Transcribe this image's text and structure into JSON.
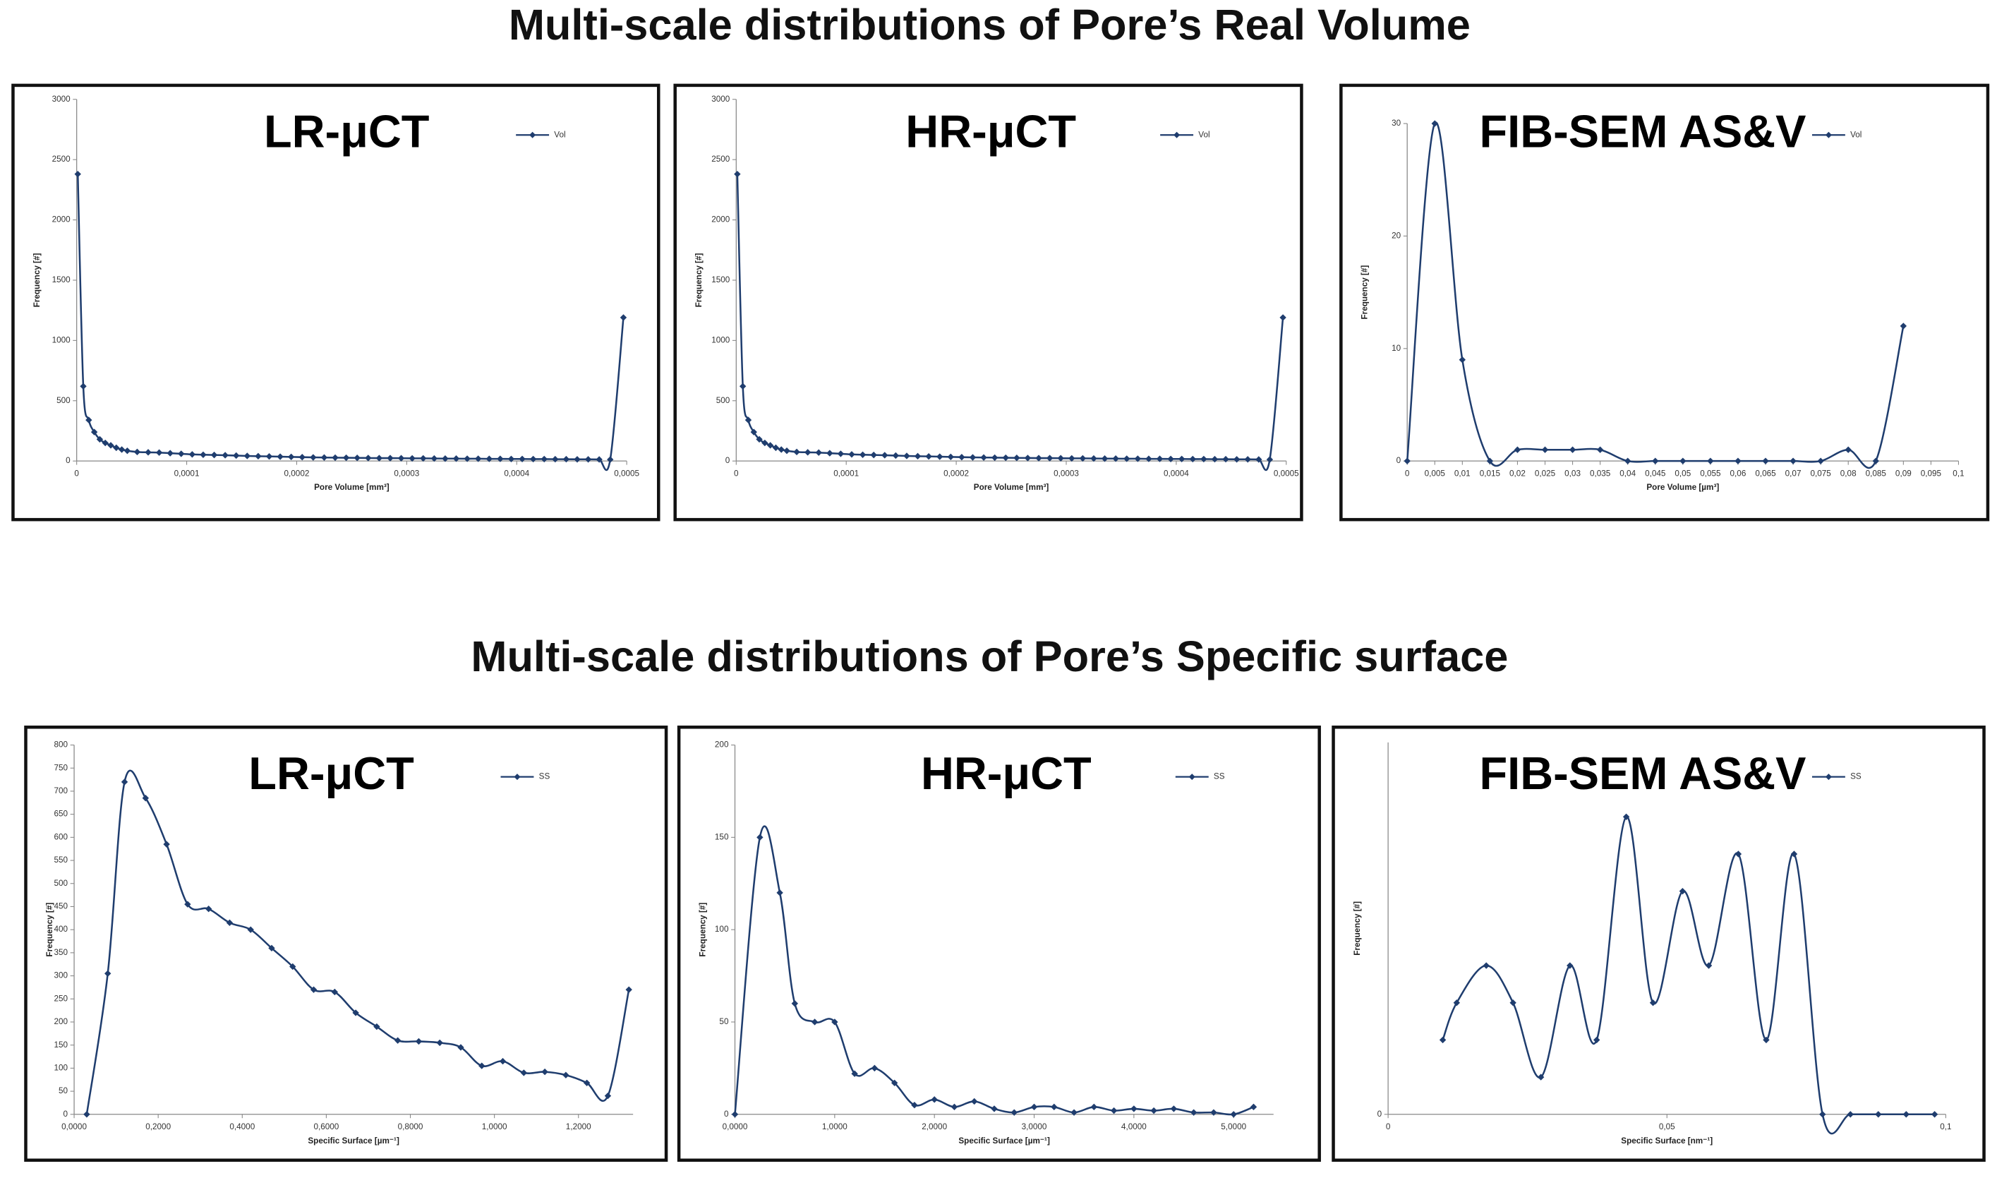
{
  "section_titles": [
    "Multi-scale distributions of Pore’s Real Volume",
    "Multi-scale distributions of Pore’s Specific surface"
  ],
  "chart_data": [
    {
      "type": "line",
      "title": "LR-μCT",
      "xlabel": "Pore Volume [mm³]",
      "ylabel": "Frequency [#]",
      "smooth": true,
      "xlim": [
        0,
        0.0005
      ],
      "xticks": [
        0,
        {
          "value": 0.0001,
          "label": "0,0001"
        },
        {
          "value": 0.0002,
          "label": "0,0002"
        },
        {
          "value": 0.0003,
          "label": "0,0003"
        },
        {
          "value": 0.0004,
          "label": "0,0004"
        },
        {
          "value": 0.0005,
          "label": "0,0005"
        }
      ],
      "ylim": [
        0,
        3000
      ],
      "yticks": [
        0,
        500,
        1000,
        1500,
        2000,
        2500,
        3000
      ],
      "x": [
        1e-06,
        6e-06,
        1.1e-05,
        1.6e-05,
        2.1e-05,
        2.6e-05,
        3.1e-05,
        3.6e-05,
        4.1e-05,
        4.6e-05,
        5.5e-05,
        6.5e-05,
        7.5e-05,
        8.5e-05,
        9.5e-05,
        0.000105,
        0.000115,
        0.000125,
        0.000135,
        0.000145,
        0.000155,
        0.000165,
        0.000175,
        0.000185,
        0.000195,
        0.000205,
        0.000215,
        0.000225,
        0.000235,
        0.000245,
        0.000255,
        0.000265,
        0.000275,
        0.000285,
        0.000295,
        0.000305,
        0.000315,
        0.000325,
        0.000335,
        0.000345,
        0.000355,
        0.000365,
        0.000375,
        0.000385,
        0.000395,
        0.000405,
        0.000415,
        0.000425,
        0.000435,
        0.000445,
        0.000455,
        0.000465,
        0.000475,
        0.000485,
        0.000497
      ],
      "series": [
        {
          "name": "Vol",
          "color": "#1f3d6e",
          "values": [
            2380,
            620,
            340,
            240,
            180,
            150,
            130,
            110,
            95,
            85,
            75,
            72,
            70,
            65,
            60,
            55,
            52,
            50,
            48,
            45,
            42,
            40,
            38,
            36,
            34,
            32,
            30,
            29,
            28,
            27,
            26,
            25,
            24,
            24,
            23,
            22,
            22,
            21,
            20,
            20,
            19,
            19,
            18,
            18,
            17,
            17,
            16,
            16,
            15,
            15,
            14,
            14,
            13,
            12,
            1190
          ]
        }
      ]
    },
    {
      "type": "line",
      "title": "HR-μCT",
      "xlabel": "Pore Volume [mm³]",
      "ylabel": "Frequency [#]",
      "smooth": true,
      "xlim": [
        0,
        0.0005
      ],
      "xticks": [
        0,
        {
          "value": 0.0001,
          "label": "0,0001"
        },
        {
          "value": 0.0002,
          "label": "0,0002"
        },
        {
          "value": 0.0003,
          "label": "0,0003"
        },
        {
          "value": 0.0004,
          "label": "0,0004"
        },
        {
          "value": 0.0005,
          "label": "0,0005"
        }
      ],
      "ylim": [
        0,
        3000
      ],
      "yticks": [
        0,
        500,
        1000,
        1500,
        2000,
        2500,
        3000
      ],
      "x": [
        1e-06,
        6e-06,
        1.1e-05,
        1.6e-05,
        2.1e-05,
        2.6e-05,
        3.1e-05,
        3.6e-05,
        4.1e-05,
        4.6e-05,
        5.5e-05,
        6.5e-05,
        7.5e-05,
        8.5e-05,
        9.5e-05,
        0.000105,
        0.000115,
        0.000125,
        0.000135,
        0.000145,
        0.000155,
        0.000165,
        0.000175,
        0.000185,
        0.000195,
        0.000205,
        0.000215,
        0.000225,
        0.000235,
        0.000245,
        0.000255,
        0.000265,
        0.000275,
        0.000285,
        0.000295,
        0.000305,
        0.000315,
        0.000325,
        0.000335,
        0.000345,
        0.000355,
        0.000365,
        0.000375,
        0.000385,
        0.000395,
        0.000405,
        0.000415,
        0.000425,
        0.000435,
        0.000445,
        0.000455,
        0.000465,
        0.000475,
        0.000485,
        0.000497
      ],
      "series": [
        {
          "name": "Vol",
          "color": "#1f3d6e",
          "values": [
            2380,
            620,
            340,
            240,
            180,
            150,
            130,
            110,
            95,
            85,
            75,
            72,
            70,
            65,
            60,
            55,
            52,
            50,
            48,
            45,
            42,
            40,
            38,
            36,
            34,
            32,
            30,
            29,
            28,
            27,
            26,
            25,
            24,
            24,
            23,
            22,
            22,
            21,
            20,
            20,
            19,
            19,
            18,
            18,
            17,
            17,
            16,
            16,
            15,
            15,
            14,
            14,
            13,
            12,
            1190
          ]
        }
      ]
    },
    {
      "type": "line",
      "title": "FIB-SEM AS&V",
      "xlabel": "Pore Volume [µm³]",
      "ylabel": "Frequency [#]",
      "smooth": true,
      "xlim": [
        0,
        0.1
      ],
      "xticks": [
        0,
        {
          "value": 0.005,
          "label": "0,005"
        },
        {
          "value": 0.01,
          "label": "0,01"
        },
        {
          "value": 0.015,
          "label": "0,015"
        },
        {
          "value": 0.02,
          "label": "0,02"
        },
        {
          "value": 0.025,
          "label": "0,025"
        },
        {
          "value": 0.03,
          "label": "0,03"
        },
        {
          "value": 0.035,
          "label": "0,035"
        },
        {
          "value": 0.04,
          "label": "0,04"
        },
        {
          "value": 0.045,
          "label": "0,045"
        },
        {
          "value": 0.05,
          "label": "0,05"
        },
        {
          "value": 0.055,
          "label": "0,055"
        },
        {
          "value": 0.06,
          "label": "0,06"
        },
        {
          "value": 0.065,
          "label": "0,065"
        },
        {
          "value": 0.07,
          "label": "0,07"
        },
        {
          "value": 0.075,
          "label": "0,075"
        },
        {
          "value": 0.08,
          "label": "0,08"
        },
        {
          "value": 0.085,
          "label": "0,085"
        },
        {
          "value": 0.09,
          "label": "0,09"
        },
        {
          "value": 0.095,
          "label": "0,095"
        },
        {
          "value": 0.1,
          "label": "0,1"
        }
      ],
      "ylim": [
        0,
        30
      ],
      "yticks": [
        0,
        10,
        20,
        30
      ],
      "x": [
        0,
        0.005,
        0.01,
        0.015,
        0.02,
        0.025,
        0.03,
        0.035,
        0.04,
        0.045,
        0.05,
        0.055,
        0.06,
        0.065,
        0.07,
        0.075,
        0.08,
        0.085,
        0.09
      ],
      "series": [
        {
          "name": "Vol",
          "color": "#1f3d6e",
          "values": [
            0,
            30,
            9,
            0,
            1,
            1,
            1,
            1,
            0,
            0,
            0,
            0,
            0,
            0,
            0,
            0,
            1,
            0,
            12
          ]
        }
      ]
    },
    {
      "type": "line",
      "title": "LR-μCT",
      "xlabel": "Specific Surface [µm⁻¹]",
      "ylabel": "Frequency [#]",
      "smooth": true,
      "xlim": [
        0,
        1.33
      ],
      "xticks": [
        {
          "value": 0,
          "label": "0,0000"
        },
        {
          "value": 0.2,
          "label": "0,2000"
        },
        {
          "value": 0.4,
          "label": "0,4000"
        },
        {
          "value": 0.6,
          "label": "0,6000"
        },
        {
          "value": 0.8,
          "label": "0,8000"
        },
        {
          "value": 1,
          "label": "1,0000"
        },
        {
          "value": 1.2,
          "label": "1,2000"
        }
      ],
      "ylim": [
        0,
        800
      ],
      "yticks": [
        0,
        50,
        100,
        150,
        200,
        250,
        300,
        350,
        400,
        450,
        500,
        550,
        600,
        650,
        700,
        750,
        800
      ],
      "x": [
        0.03,
        0.08,
        0.12,
        0.17,
        0.22,
        0.27,
        0.32,
        0.37,
        0.42,
        0.47,
        0.52,
        0.57,
        0.62,
        0.67,
        0.72,
        0.77,
        0.82,
        0.87,
        0.92,
        0.97,
        1.02,
        1.07,
        1.12,
        1.17,
        1.22,
        1.27,
        1.32
      ],
      "series": [
        {
          "name": "SS",
          "color": "#1f3d6e",
          "values": [
            0,
            305,
            720,
            685,
            585,
            455,
            445,
            415,
            400,
            360,
            320,
            270,
            265,
            220,
            190,
            160,
            158,
            155,
            145,
            105,
            115,
            90,
            92,
            85,
            68,
            40,
            270
          ]
        }
      ]
    },
    {
      "type": "line",
      "title": "HR-μCT",
      "xlabel": "Specific Surface [µm⁻¹]",
      "ylabel": "Frequency [#]",
      "smooth": true,
      "xlim": [
        0,
        5.4
      ],
      "xticks": [
        {
          "value": 0,
          "label": "0,0000"
        },
        {
          "value": 1,
          "label": "1,0000"
        },
        {
          "value": 2,
          "label": "2,0000"
        },
        {
          "value": 3,
          "label": "3,0000"
        },
        {
          "value": 4,
          "label": "4,0000"
        },
        {
          "value": 5,
          "label": "5,0000"
        }
      ],
      "ylim": [
        0,
        200
      ],
      "yticks": [
        0,
        50,
        100,
        150,
        200
      ],
      "x": [
        0,
        0.25,
        0.45,
        0.6,
        0.8,
        1,
        1.2,
        1.4,
        1.6,
        1.8,
        2,
        2.2,
        2.4,
        2.6,
        2.8,
        3,
        3.2,
        3.4,
        3.6,
        3.8,
        4,
        4.2,
        4.4,
        4.6,
        4.8,
        5,
        5.2
      ],
      "series": [
        {
          "name": "SS",
          "color": "#1f3d6e",
          "values": [
            0,
            150,
            120,
            60,
            50,
            50,
            22,
            25,
            17,
            5,
            8,
            4,
            7,
            3,
            1,
            4,
            4,
            1,
            4,
            2,
            3,
            2,
            3,
            1,
            1,
            0,
            4
          ]
        }
      ]
    },
    {
      "type": "line",
      "title": "FIB-SEM AS&V",
      "xlabel": "Specific Surface [nm⁻¹]",
      "ylabel": "Frequency [#]",
      "smooth": true,
      "xlim": [
        0,
        0.1
      ],
      "xticks": [
        0,
        {
          "value": 0.05,
          "label": "0,05"
        },
        {
          "value": 0.1,
          "label": "0,1"
        }
      ],
      "ylim": [
        0,
        10
      ],
      "yticks": [
        0
      ],
      "x": [
        0.0098,
        0.0123,
        0.0176,
        0.0224,
        0.0274,
        0.0326,
        0.0374,
        0.0427,
        0.0475,
        0.0528,
        0.0575,
        0.0628,
        0.0678,
        0.0728,
        0.0779,
        0.0829,
        0.0879,
        0.0929,
        0.098
      ],
      "series": [
        {
          "name": "SS",
          "color": "#1f3d6e",
          "values": [
            2,
            3,
            4,
            3,
            1,
            4,
            2,
            8,
            3,
            6,
            4,
            7,
            2,
            7,
            0,
            0,
            0,
            0,
            0
          ]
        }
      ]
    }
  ]
}
